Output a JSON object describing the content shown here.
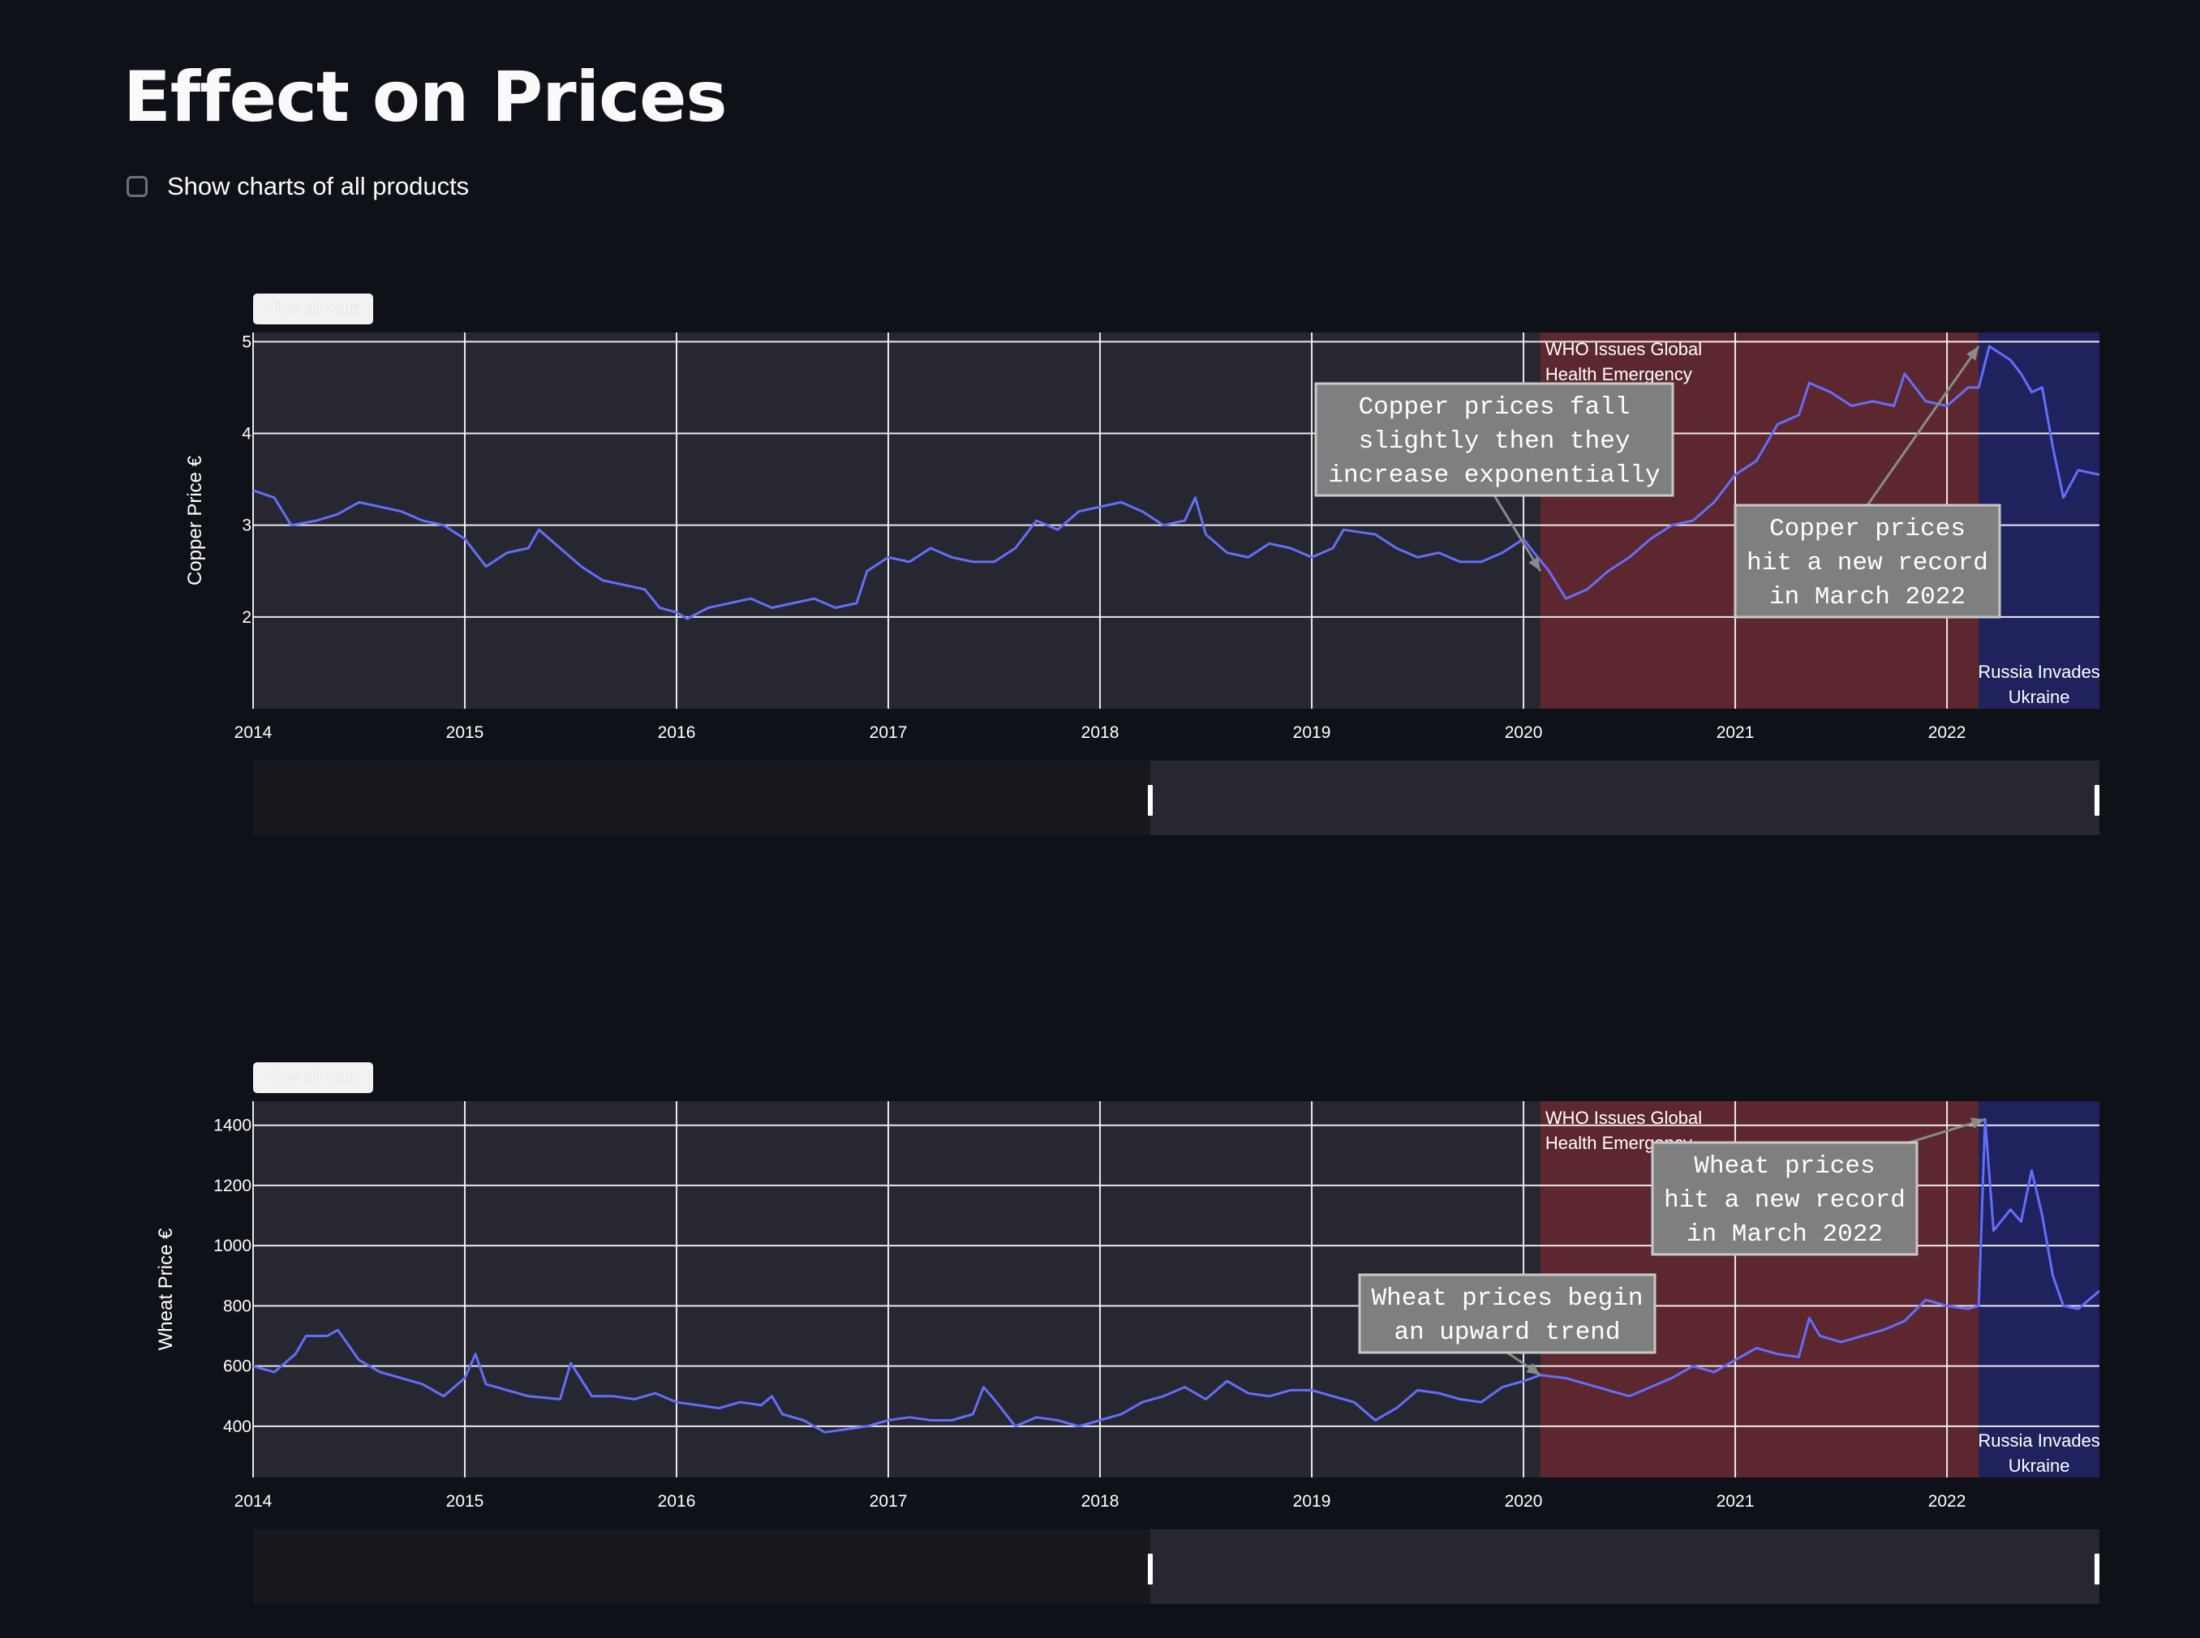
{
  "page": {
    "title": "Effect on Prices",
    "checkbox_label": "Show charts of all products",
    "checkbox_checked": false
  },
  "colors": {
    "background": "#0e1117",
    "plot_bg": "#262730",
    "line": "#636efa",
    "covid_shade": "#5c272e",
    "war_shade": "#20225e",
    "grid": "#ffffff"
  },
  "chart_data": [
    {
      "type": "line",
      "button_label": "View all Data",
      "ylabel": "Copper Price  €",
      "xlim": [
        2014.0,
        2022.72
      ],
      "ylim": [
        1.0,
        5.1
      ],
      "y_ticks": [
        2,
        3,
        4,
        5
      ],
      "x_ticks": [
        2014,
        2015,
        2016,
        2017,
        2018,
        2019,
        2020,
        2021,
        2022
      ],
      "grid": true,
      "points": [
        [
          2014.0,
          3.38
        ],
        [
          2014.1,
          3.3
        ],
        [
          2014.18,
          3.0
        ],
        [
          2014.3,
          3.05
        ],
        [
          2014.4,
          3.12
        ],
        [
          2014.5,
          3.25
        ],
        [
          2014.6,
          3.2
        ],
        [
          2014.7,
          3.15
        ],
        [
          2014.8,
          3.05
        ],
        [
          2014.9,
          3.0
        ],
        [
          2015.0,
          2.85
        ],
        [
          2015.1,
          2.55
        ],
        [
          2015.2,
          2.7
        ],
        [
          2015.3,
          2.75
        ],
        [
          2015.35,
          2.95
        ],
        [
          2015.45,
          2.75
        ],
        [
          2015.55,
          2.55
        ],
        [
          2015.65,
          2.4
        ],
        [
          2015.75,
          2.35
        ],
        [
          2015.85,
          2.3
        ],
        [
          2015.92,
          2.1
        ],
        [
          2016.0,
          2.05
        ],
        [
          2016.05,
          1.98
        ],
        [
          2016.15,
          2.1
        ],
        [
          2016.25,
          2.15
        ],
        [
          2016.35,
          2.2
        ],
        [
          2016.45,
          2.1
        ],
        [
          2016.55,
          2.15
        ],
        [
          2016.65,
          2.2
        ],
        [
          2016.75,
          2.1
        ],
        [
          2016.85,
          2.15
        ],
        [
          2016.9,
          2.5
        ],
        [
          2017.0,
          2.65
        ],
        [
          2017.1,
          2.6
        ],
        [
          2017.2,
          2.75
        ],
        [
          2017.3,
          2.65
        ],
        [
          2017.4,
          2.6
        ],
        [
          2017.5,
          2.6
        ],
        [
          2017.6,
          2.75
        ],
        [
          2017.7,
          3.05
        ],
        [
          2017.8,
          2.95
        ],
        [
          2017.9,
          3.15
        ],
        [
          2018.0,
          3.2
        ],
        [
          2018.1,
          3.25
        ],
        [
          2018.2,
          3.15
        ],
        [
          2018.3,
          3.0
        ],
        [
          2018.4,
          3.05
        ],
        [
          2018.45,
          3.3
        ],
        [
          2018.5,
          2.9
        ],
        [
          2018.6,
          2.7
        ],
        [
          2018.7,
          2.65
        ],
        [
          2018.8,
          2.8
        ],
        [
          2018.9,
          2.75
        ],
        [
          2019.0,
          2.65
        ],
        [
          2019.1,
          2.75
        ],
        [
          2019.15,
          2.95
        ],
        [
          2019.3,
          2.9
        ],
        [
          2019.4,
          2.75
        ],
        [
          2019.5,
          2.65
        ],
        [
          2019.6,
          2.7
        ],
        [
          2019.7,
          2.6
        ],
        [
          2019.8,
          2.6
        ],
        [
          2019.9,
          2.7
        ],
        [
          2020.0,
          2.85
        ],
        [
          2020.05,
          2.7
        ],
        [
          2020.12,
          2.5
        ],
        [
          2020.2,
          2.2
        ],
        [
          2020.3,
          2.3
        ],
        [
          2020.4,
          2.5
        ],
        [
          2020.5,
          2.65
        ],
        [
          2020.6,
          2.85
        ],
        [
          2020.7,
          3.0
        ],
        [
          2020.8,
          3.05
        ],
        [
          2020.9,
          3.25
        ],
        [
          2021.0,
          3.55
        ],
        [
          2021.1,
          3.7
        ],
        [
          2021.2,
          4.1
        ],
        [
          2021.3,
          4.2
        ],
        [
          2021.35,
          4.55
        ],
        [
          2021.45,
          4.45
        ],
        [
          2021.55,
          4.3
        ],
        [
          2021.65,
          4.35
        ],
        [
          2021.75,
          4.3
        ],
        [
          2021.8,
          4.65
        ],
        [
          2021.9,
          4.35
        ],
        [
          2022.0,
          4.3
        ],
        [
          2022.1,
          4.5
        ],
        [
          2022.15,
          4.5
        ],
        [
          2022.2,
          4.95
        ],
        [
          2022.3,
          4.8
        ],
        [
          2022.35,
          4.65
        ],
        [
          2022.4,
          4.45
        ],
        [
          2022.45,
          4.5
        ],
        [
          2022.5,
          3.85
        ],
        [
          2022.55,
          3.3
        ],
        [
          2022.62,
          3.6
        ],
        [
          2022.72,
          3.55
        ]
      ],
      "regions": [
        {
          "x0": 2020.08,
          "x1": 2022.15,
          "label_lines": [
            "WHO Issues Global",
            "Health Emergency"
          ],
          "label_pos": "top-left"
        },
        {
          "x0": 2022.15,
          "x1": 2022.72,
          "label_lines": [
            "Russia Invades",
            "Ukraine"
          ],
          "label_pos": "bottom"
        }
      ],
      "annotations": [
        {
          "lines": [
            "Copper prices fall",
            "slightly then they",
            "increase exponentially"
          ],
          "x": 2020.08,
          "y": 2.5
        },
        {
          "lines": [
            "Copper prices",
            "hit a new record",
            "in March 2022"
          ],
          "x": 2022.15,
          "y": 4.95
        }
      ]
    },
    {
      "type": "line",
      "button_label": "View all Data",
      "ylabel": "Wheat Price  €",
      "xlim": [
        2014.0,
        2022.72
      ],
      "ylim": [
        230,
        1480
      ],
      "y_ticks": [
        400,
        600,
        800,
        1000,
        1200,
        1400
      ],
      "x_ticks": [
        2014,
        2015,
        2016,
        2017,
        2018,
        2019,
        2020,
        2021,
        2022
      ],
      "grid": true,
      "points": [
        [
          2014.0,
          600
        ],
        [
          2014.1,
          580
        ],
        [
          2014.2,
          640
        ],
        [
          2014.25,
          700
        ],
        [
          2014.35,
          700
        ],
        [
          2014.4,
          720
        ],
        [
          2014.5,
          620
        ],
        [
          2014.6,
          580
        ],
        [
          2014.7,
          560
        ],
        [
          2014.8,
          540
        ],
        [
          2014.9,
          500
        ],
        [
          2015.0,
          560
        ],
        [
          2015.05,
          640
        ],
        [
          2015.1,
          540
        ],
        [
          2015.2,
          520
        ],
        [
          2015.3,
          500
        ],
        [
          2015.45,
          490
        ],
        [
          2015.5,
          610
        ],
        [
          2015.6,
          500
        ],
        [
          2015.7,
          500
        ],
        [
          2015.8,
          490
        ],
        [
          2015.9,
          510
        ],
        [
          2016.0,
          480
        ],
        [
          2016.1,
          470
        ],
        [
          2016.2,
          460
        ],
        [
          2016.3,
          480
        ],
        [
          2016.4,
          470
        ],
        [
          2016.45,
          500
        ],
        [
          2016.5,
          440
        ],
        [
          2016.6,
          420
        ],
        [
          2016.7,
          380
        ],
        [
          2016.8,
          390
        ],
        [
          2016.9,
          400
        ],
        [
          2017.0,
          420
        ],
        [
          2017.1,
          430
        ],
        [
          2017.2,
          420
        ],
        [
          2017.3,
          420
        ],
        [
          2017.4,
          440
        ],
        [
          2017.45,
          530
        ],
        [
          2017.5,
          490
        ],
        [
          2017.6,
          400
        ],
        [
          2017.7,
          430
        ],
        [
          2017.8,
          420
        ],
        [
          2017.9,
          400
        ],
        [
          2018.0,
          420
        ],
        [
          2018.1,
          440
        ],
        [
          2018.2,
          480
        ],
        [
          2018.3,
          500
        ],
        [
          2018.4,
          530
        ],
        [
          2018.5,
          490
        ],
        [
          2018.6,
          550
        ],
        [
          2018.7,
          510
        ],
        [
          2018.8,
          500
        ],
        [
          2018.9,
          520
        ],
        [
          2019.0,
          520
        ],
        [
          2019.1,
          500
        ],
        [
          2019.2,
          480
        ],
        [
          2019.3,
          420
        ],
        [
          2019.4,
          460
        ],
        [
          2019.5,
          520
        ],
        [
          2019.6,
          510
        ],
        [
          2019.7,
          490
        ],
        [
          2019.8,
          480
        ],
        [
          2019.9,
          530
        ],
        [
          2020.0,
          550
        ],
        [
          2020.08,
          570
        ],
        [
          2020.2,
          560
        ],
        [
          2020.3,
          540
        ],
        [
          2020.4,
          520
        ],
        [
          2020.5,
          500
        ],
        [
          2020.6,
          530
        ],
        [
          2020.7,
          560
        ],
        [
          2020.8,
          600
        ],
        [
          2020.9,
          580
        ],
        [
          2021.0,
          620
        ],
        [
          2021.1,
          660
        ],
        [
          2021.2,
          640
        ],
        [
          2021.3,
          630
        ],
        [
          2021.35,
          760
        ],
        [
          2021.4,
          700
        ],
        [
          2021.5,
          680
        ],
        [
          2021.6,
          700
        ],
        [
          2021.7,
          720
        ],
        [
          2021.8,
          750
        ],
        [
          2021.9,
          820
        ],
        [
          2022.0,
          800
        ],
        [
          2022.1,
          790
        ],
        [
          2022.15,
          800
        ],
        [
          2022.18,
          1420
        ],
        [
          2022.22,
          1050
        ],
        [
          2022.3,
          1120
        ],
        [
          2022.35,
          1080
        ],
        [
          2022.4,
          1250
        ],
        [
          2022.45,
          1100
        ],
        [
          2022.5,
          900
        ],
        [
          2022.55,
          800
        ],
        [
          2022.62,
          790
        ],
        [
          2022.72,
          850
        ]
      ],
      "regions": [
        {
          "x0": 2020.08,
          "x1": 2022.15,
          "label_lines": [
            "WHO Issues Global",
            "Health Emergency"
          ],
          "label_pos": "top-left"
        },
        {
          "x0": 2022.15,
          "x1": 2022.72,
          "label_lines": [
            "Russia Invades",
            "Ukraine"
          ],
          "label_pos": "bottom"
        }
      ],
      "annotations": [
        {
          "lines": [
            "Wheat prices begin",
            "an upward trend"
          ],
          "x": 2020.08,
          "y": 570
        },
        {
          "lines": [
            "Wheat prices",
            "hit a new record",
            "in March 2022"
          ],
          "x": 2022.18,
          "y": 1420
        }
      ]
    }
  ]
}
